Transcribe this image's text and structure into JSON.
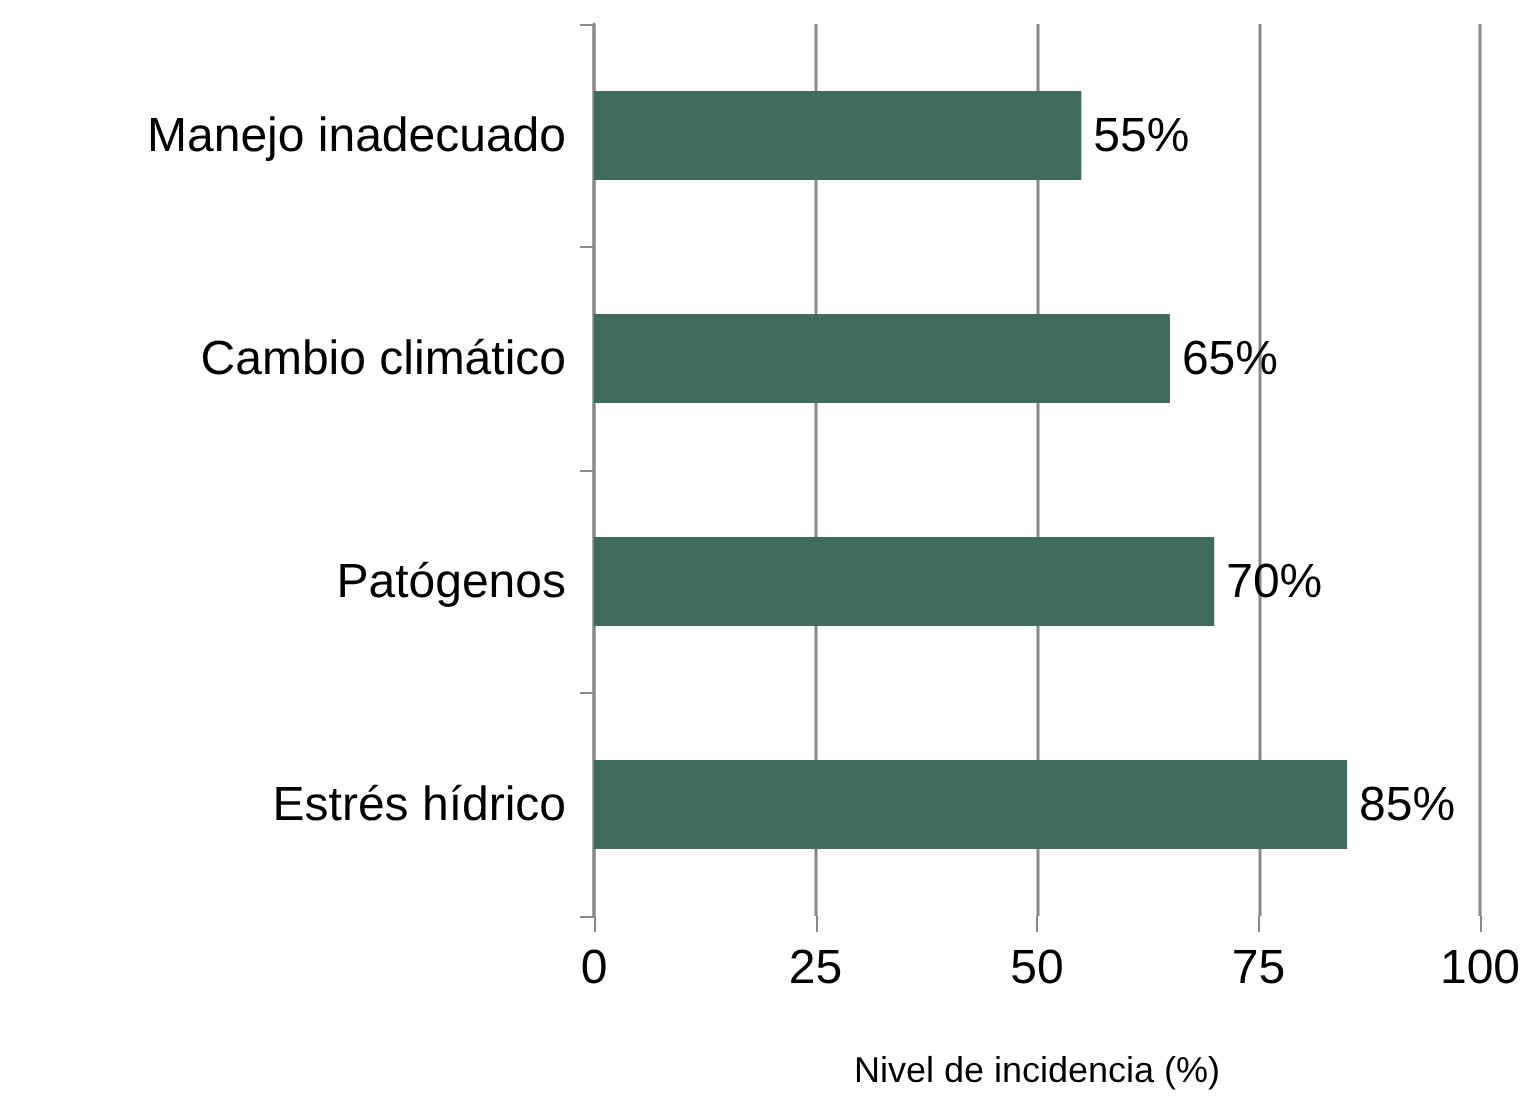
{
  "chart_data": {
    "type": "bar",
    "orientation": "horizontal",
    "xlabel": "Nivel de incidencia (%)",
    "categories": [
      "Manejo inadecuado",
      "Cambio climático",
      "Patógenos",
      "Estrés hídrico"
    ],
    "values": [
      55,
      65,
      70,
      85
    ],
    "value_labels": [
      "55%",
      "65%",
      "70%",
      "85%"
    ],
    "color": "#3e6b5a",
    "xlim": [
      0,
      100
    ],
    "xticks": [
      0,
      25,
      50,
      75,
      100
    ],
    "grid": "x"
  }
}
